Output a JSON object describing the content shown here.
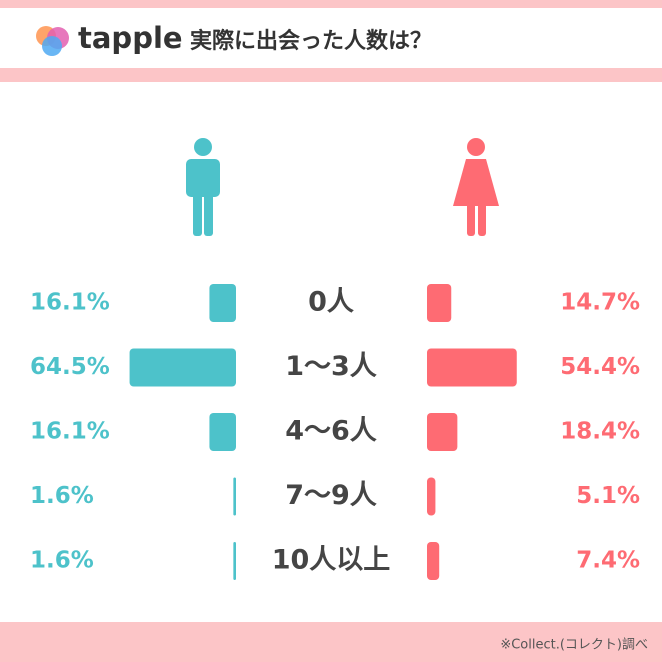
{
  "brand": "tapple",
  "footer": "※Collect.(コレクト)調べ",
  "chart_data": {
    "type": "butterfly",
    "title": "実際に出会った人数は？",
    "categories": [
      "0人",
      "1〜3人",
      "4〜6人",
      "7〜9人",
      "10人以上"
    ],
    "series": [
      {
        "color": "#4dc2ca",
        "values": [
          16.1,
          64.5,
          16.1,
          1.6,
          1.6
        ],
        "value_labels": [
          "16.1%",
          "64.5%",
          "16.1%",
          "1.6%",
          "1.6%"
        ]
      },
      {
        "color": "#fe6b73",
        "values": [
          14.7,
          54.4,
          18.4,
          5.1,
          7.4
        ],
        "value_labels": [
          "14.7%",
          "54.4%",
          "18.4%",
          "5.1%",
          "7.4%"
        ]
      }
    ]
  }
}
